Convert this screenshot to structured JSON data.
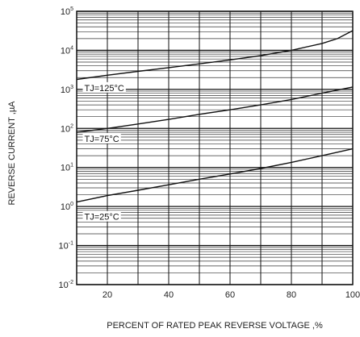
{
  "chart_data": {
    "type": "line",
    "title": "",
    "xlabel": "PERCENT OF RATED PEAK REVERSE VOLTAGE ,%",
    "ylabel": "REVERSE CURRENT ,µA",
    "xlim": [
      10,
      100
    ],
    "ylim": [
      0.01,
      100000
    ],
    "yscale": "log",
    "grid": true,
    "x_ticks": [
      "20",
      "40",
      "60",
      "80",
      "100"
    ],
    "y_ticks": [
      {
        "base": "10",
        "exp": "-2"
      },
      {
        "base": "10",
        "exp": "-1"
      },
      {
        "base": "10",
        "exp": "0"
      },
      {
        "base": "10",
        "exp": "1"
      },
      {
        "base": "10",
        "exp": "2"
      },
      {
        "base": "10",
        "exp": "3"
      },
      {
        "base": "10",
        "exp": "4"
      },
      {
        "base": "10",
        "exp": "5"
      }
    ],
    "series": [
      {
        "label": "TJ=125°C",
        "x": [
          10,
          20,
          30,
          40,
          50,
          60,
          70,
          80,
          90,
          95,
          100
        ],
        "y": [
          1800,
          2300,
          2900,
          3600,
          4500,
          5700,
          7300,
          10000,
          15000,
          20000,
          32000
        ]
      },
      {
        "label": "TJ=75°C",
        "x": [
          10,
          20,
          30,
          40,
          50,
          60,
          70,
          80,
          90,
          100
        ],
        "y": [
          80,
          100,
          130,
          170,
          230,
          300,
          400,
          550,
          800,
          1150
        ]
      },
      {
        "label": "TJ=25°C",
        "x": [
          10,
          20,
          30,
          40,
          50,
          60,
          70,
          80,
          90,
          100
        ],
        "y": [
          1.3,
          1.9,
          2.6,
          3.6,
          5.0,
          6.8,
          9.4,
          13.5,
          20,
          30
        ]
      }
    ]
  }
}
